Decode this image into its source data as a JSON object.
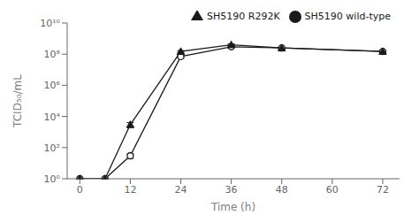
{
  "chart_data": {
    "type": "line",
    "xlabel": "Time (h)",
    "ylabel": "TCID₅₀/mL",
    "x": [
      0,
      6,
      12,
      24,
      36,
      48,
      72
    ],
    "series": [
      {
        "name": "SH5190 wild-type",
        "color": "#1a1a1a",
        "marker": "open-circle",
        "line_style": "solid",
        "values": [
          1.0,
          1.0,
          30,
          70000000.0,
          300000000.0,
          250000000.0,
          150000000.0
        ],
        "yerr_low": [
          0,
          0,
          10,
          15000000.0,
          40000000.0,
          20000000.0,
          20000000.0
        ],
        "yerr_high": [
          0,
          0,
          10,
          15000000.0,
          40000000.0,
          20000000.0,
          20000000.0
        ]
      },
      {
        "name": "SH5190 R292K",
        "color": "#1a1a1a",
        "marker": "triangle",
        "line_style": "solid",
        "values": [
          1.0,
          1.0,
          3000,
          150000000.0,
          400000000.0,
          250000000.0,
          150000000.0
        ],
        "yerr_low": [
          0,
          0,
          1000,
          20000000.0,
          50000000.0,
          20000000.0,
          20000000.0
        ],
        "yerr_high": [
          0,
          0,
          1000,
          20000000.0,
          50000000.0,
          20000000.0,
          20000000.0
        ]
      }
    ],
    "xlim": [
      -3,
      76
    ],
    "xticks": [
      0,
      12,
      24,
      36,
      48,
      60,
      72
    ],
    "ylim": [
      1,
      10000000000.0
    ],
    "yticks": [
      {
        "value": 1,
        "label": "10⁰"
      },
      {
        "value": 100,
        "label": "10²"
      },
      {
        "value": 10000,
        "label": "10⁴"
      },
      {
        "value": 1000000,
        "label": "10⁶"
      },
      {
        "value": 100000000,
        "label": "10⁸"
      },
      {
        "value": 10000000000,
        "label": "10¹⁰"
      }
    ],
    "log": "y",
    "grid": false,
    "legend": "upper right"
  }
}
